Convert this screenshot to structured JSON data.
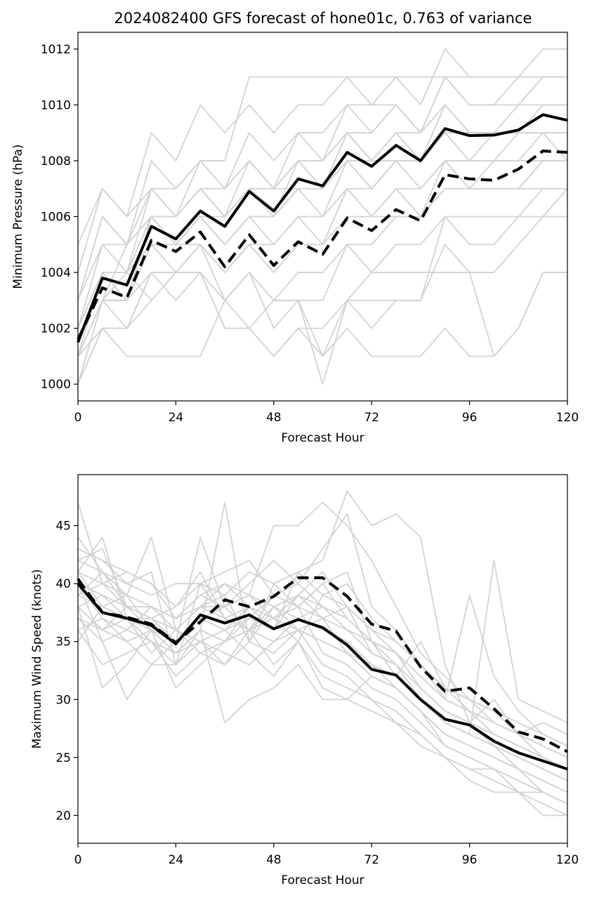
{
  "colors": {
    "ensemble": "#d3d3d3",
    "mean": "#000000",
    "deterministic": "#000000"
  },
  "chart_data": [
    {
      "type": "line",
      "title": "2024082400 GFS forecast of hone01c, 0.763 of variance",
      "xlabel": "Forecast Hour",
      "ylabel": "Minimum Pressure (hPa)",
      "xlim": [
        0,
        120
      ],
      "ylim": [
        999.4,
        1012.6
      ],
      "xticks": [
        0,
        24,
        48,
        72,
        96,
        120
      ],
      "yticks": [
        1000,
        1002,
        1004,
        1006,
        1008,
        1010,
        1012
      ],
      "x": [
        0,
        6,
        12,
        18,
        24,
        30,
        36,
        42,
        48,
        54,
        60,
        66,
        72,
        78,
        84,
        90,
        96,
        102,
        108,
        114,
        120
      ],
      "series": [
        {
          "style": "solid-thick",
          "values": [
            1001.5,
            1003.8,
            1003.55,
            1005.65,
            1005.2,
            1006.2,
            1005.65,
            1006.9,
            1006.2,
            1007.35,
            1007.1,
            1008.3,
            1007.8,
            1008.55,
            1008.0,
            1009.15,
            1008.9,
            1008.92,
            1009.1,
            1009.65,
            1009.45
          ]
        },
        {
          "style": "dashed-thick",
          "values": [
            1001.6,
            1003.45,
            1003.1,
            1005.15,
            1004.75,
            1005.45,
            1004.2,
            1005.35,
            1004.25,
            1005.1,
            1004.65,
            1005.95,
            1005.5,
            1006.25,
            1005.85,
            1007.5,
            1007.35,
            1007.3,
            1007.7,
            1008.35,
            1008.3
          ]
        }
      ],
      "ensemble_members": [
        [
          1000,
          1003,
          1005,
          1007,
          1006,
          1007,
          1006,
          1008,
          1007,
          1008,
          1008,
          1009,
          1009,
          1010,
          1009,
          1011,
          1010,
          1010,
          1010,
          1011,
          1011
        ],
        [
          1001,
          1004,
          1003,
          1006,
          1005,
          1006,
          1006,
          1007,
          1006,
          1008,
          1007,
          1009,
          1008,
          1009,
          1008,
          1010,
          1009,
          1009,
          1009,
          1010,
          1010
        ],
        [
          1002,
          1004,
          1004,
          1006,
          1006,
          1007,
          1006,
          1007,
          1007,
          1008,
          1007,
          1009,
          1008,
          1009,
          1009,
          1010,
          1009,
          1009,
          1010,
          1010,
          1010
        ],
        [
          1001,
          1003,
          1003,
          1005,
          1005,
          1006,
          1005,
          1006,
          1006,
          1007,
          1006,
          1008,
          1007,
          1008,
          1008,
          1009,
          1008,
          1009,
          1009,
          1009,
          1009
        ],
        [
          1002,
          1005,
          1004,
          1007,
          1006,
          1008,
          1007,
          1008,
          1007,
          1009,
          1008,
          1010,
          1009,
          1010,
          1009,
          1011,
          1010,
          1010,
          1010,
          1011,
          1011
        ],
        [
          1001,
          1003,
          1003,
          1006,
          1005,
          1006,
          1005,
          1006,
          1005,
          1006,
          1006,
          1007,
          1007,
          1008,
          1007,
          1008,
          1008,
          1008,
          1008,
          1009,
          1008
        ],
        [
          1000,
          1002,
          1002,
          1004,
          1004,
          1005,
          1004,
          1005,
          1004,
          1005,
          1005,
          1006,
          1006,
          1007,
          1006,
          1007,
          1007,
          1007,
          1007,
          1008,
          1008
        ],
        [
          1001,
          1003,
          1002,
          1004,
          1004,
          1004,
          1003,
          1004,
          1003,
          1004,
          1004,
          1005,
          1005,
          1006,
          1006,
          1007,
          1007,
          1007,
          1007,
          1008,
          1008
        ],
        [
          1001,
          1002,
          1002,
          1004,
          1003,
          1004,
          1002,
          1002,
          1001,
          1002,
          1002,
          1003,
          1002,
          1003,
          1003,
          1005,
          1004,
          1004,
          1005,
          1006,
          1006
        ],
        [
          1001,
          1002,
          1001,
          1001,
          1001,
          1001,
          1003,
          1002,
          1001,
          1002,
          1001,
          1002,
          1001,
          1001,
          1001,
          1002,
          1001,
          1001,
          1002,
          1004,
          1004
        ],
        [
          1000,
          1002,
          1002,
          1003,
          1004,
          1004,
          1003,
          1004,
          1003,
          1003,
          1000,
          1003,
          1004,
          1004,
          1004,
          1004,
          1004,
          1001,
          1002,
          1004,
          1004
        ],
        [
          1003,
          1005,
          1005,
          1006,
          1006,
          1007,
          1007,
          1008,
          1007,
          1008,
          1008,
          1009,
          1008,
          1009,
          1008,
          1010,
          1009,
          1009,
          1009,
          1010,
          1010
        ],
        [
          1004,
          1007,
          1006,
          1009,
          1008,
          1010,
          1009,
          1010,
          1009,
          1010,
          1010,
          1011,
          1010,
          1011,
          1010,
          1012,
          1011,
          1011,
          1011,
          1012,
          1012
        ],
        [
          1003,
          1006,
          1005,
          1008,
          1007,
          1008,
          1008,
          1011,
          1011,
          1011,
          1011,
          1011,
          1011,
          1011,
          1011,
          1011,
          1011,
          1011,
          1011,
          1011,
          1011
        ],
        [
          1005,
          1007,
          1006,
          1007,
          1007,
          1008,
          1007,
          1009,
          1008,
          1009,
          1009,
          1010,
          1010,
          1010,
          1009,
          1011,
          1010,
          1010,
          1011,
          1011,
          1011
        ],
        [
          1002,
          1004,
          1004,
          1005,
          1005,
          1005,
          1004,
          1005,
          1005,
          1006,
          1005,
          1007,
          1006,
          1007,
          1007,
          1008,
          1007,
          1008,
          1008,
          1008,
          1008
        ],
        [
          1001,
          1003,
          1004,
          1003,
          1004,
          1005,
          1003,
          1004,
          1002,
          1003,
          1001,
          1003,
          1003,
          1003,
          1003,
          1006,
          1005,
          1005,
          1006,
          1006,
          1007
        ],
        [
          1002,
          1004,
          1003,
          1004,
          1004,
          1004,
          1002,
          1002,
          1003,
          1003,
          1003,
          1005,
          1004,
          1005,
          1005,
          1006,
          1006,
          1006,
          1006,
          1007,
          1007
        ],
        [
          1001,
          1003,
          1003,
          1005,
          1004,
          1005,
          1004,
          1005,
          1004,
          1005,
          1005,
          1007,
          1006,
          1006,
          1006,
          1008,
          1007,
          1007,
          1007,
          1007,
          1007
        ],
        [
          1002,
          1004,
          1004,
          1006,
          1005,
          1006,
          1005,
          1006,
          1006,
          1007,
          1007,
          1008,
          1007,
          1008,
          1008,
          1009,
          1009,
          1009,
          1009,
          1010,
          1010
        ],
        [
          1003,
          1006,
          1005,
          1006,
          1006,
          1007,
          1006,
          1007,
          1007,
          1007,
          1007,
          1008,
          1008,
          1008,
          1008,
          1009,
          1008,
          1008,
          1009,
          1009,
          1009
        ]
      ]
    },
    {
      "type": "line",
      "title": "",
      "xlabel": "Forecast Hour",
      "ylabel": "Maximum Wind Speed (knots)",
      "xlim": [
        0,
        120
      ],
      "ylim": [
        17.6,
        49.4
      ],
      "xticks": [
        0,
        24,
        48,
        72,
        96,
        120
      ],
      "yticks": [
        20,
        25,
        30,
        35,
        40,
        45
      ],
      "x": [
        0,
        6,
        12,
        18,
        24,
        30,
        36,
        42,
        48,
        54,
        60,
        66,
        72,
        78,
        84,
        90,
        96,
        102,
        108,
        114,
        120
      ],
      "series": [
        {
          "style": "solid-thick",
          "values": [
            40.0,
            37.5,
            37.0,
            36.4,
            34.8,
            37.3,
            36.6,
            37.3,
            36.1,
            36.9,
            36.2,
            34.7,
            32.6,
            32.1,
            30.0,
            28.3,
            27.8,
            26.4,
            25.4,
            24.7,
            24.0
          ]
        },
        {
          "style": "dashed-thick",
          "values": [
            40.4,
            37.5,
            37.1,
            36.5,
            34.9,
            36.7,
            38.6,
            38.0,
            38.9,
            40.5,
            40.5,
            38.9,
            36.5,
            35.9,
            32.8,
            30.7,
            31.0,
            29.2,
            27.2,
            26.6,
            25.5
          ]
        }
      ],
      "ensemble_members": [
        [
          47,
          40,
          38,
          36,
          34,
          36,
          47,
          35,
          40,
          38,
          40,
          41,
          35,
          33,
          30,
          28,
          27,
          26,
          24,
          23,
          22
        ],
        [
          44,
          41,
          38,
          38,
          36,
          38,
          40,
          39,
          45,
          45,
          47,
          45,
          42,
          38,
          34,
          32,
          30,
          29,
          27,
          26,
          25
        ],
        [
          41,
          38,
          37,
          35,
          33,
          36,
          35,
          38,
          36,
          41,
          42,
          48,
          45,
          46,
          44,
          33,
          28,
          26,
          25,
          24,
          23
        ],
        [
          43,
          42,
          40,
          39,
          40,
          40,
          41,
          42,
          39,
          40,
          43,
          46,
          38,
          36,
          33,
          31,
          30,
          28,
          27,
          25,
          24
        ],
        [
          38,
          36,
          35,
          36,
          35,
          37,
          38,
          36,
          37,
          35,
          39,
          40,
          37,
          35,
          33,
          30,
          39,
          32,
          29,
          27,
          26
        ],
        [
          37,
          36,
          37,
          34,
          36,
          38,
          39,
          35,
          38,
          36,
          37,
          38,
          34,
          33,
          31,
          29,
          28,
          30,
          27,
          28,
          27
        ],
        [
          35,
          38,
          39,
          36,
          34,
          35,
          33,
          36,
          35,
          37,
          38,
          36,
          35,
          32,
          30,
          28,
          27,
          42,
          30,
          29,
          28
        ],
        [
          39,
          41,
          40,
          41,
          33,
          40,
          37,
          36,
          38,
          37,
          36,
          35,
          33,
          31,
          29,
          27,
          26,
          25,
          24,
          23,
          22
        ],
        [
          42,
          43,
          38,
          37,
          36,
          34,
          35,
          37,
          39,
          38,
          34,
          33,
          31,
          30,
          28,
          26,
          25,
          24,
          23,
          22,
          21
        ],
        [
          40,
          37,
          35,
          33,
          35,
          37,
          36,
          38,
          37,
          39,
          37,
          34,
          32,
          31,
          29,
          27,
          26,
          25,
          24,
          22,
          21
        ],
        [
          36,
          33,
          34,
          35,
          32,
          34,
          33,
          35,
          34,
          36,
          33,
          32,
          30,
          29,
          27,
          25,
          24,
          24,
          22,
          21,
          20
        ],
        [
          38,
          31,
          33,
          36,
          31,
          33,
          35,
          36,
          33,
          35,
          32,
          31,
          30,
          28,
          26,
          25,
          23,
          22,
          22,
          20,
          20
        ],
        [
          41,
          44,
          37,
          37,
          38,
          41,
          37,
          36,
          39,
          38,
          40,
          37,
          35,
          34,
          32,
          30,
          29,
          27,
          26,
          25,
          24
        ],
        [
          39,
          40,
          41,
          40,
          37,
          39,
          40,
          38,
          36,
          39,
          41,
          38,
          36,
          35,
          33,
          31,
          29,
          28,
          27,
          26,
          25
        ],
        [
          40,
          35,
          36,
          38,
          37,
          39,
          38,
          40,
          42,
          40,
          38,
          37,
          35,
          34,
          31,
          29,
          28,
          27,
          26,
          25,
          24
        ],
        [
          37,
          35,
          30,
          33,
          33,
          35,
          36,
          34,
          32,
          35,
          31,
          30,
          29,
          28,
          27,
          25,
          24,
          23,
          22,
          22,
          21
        ],
        [
          38,
          39,
          37,
          35,
          34,
          36,
          28,
          30,
          31,
          33,
          30,
          30,
          32,
          31,
          29,
          26,
          25,
          24,
          23,
          22,
          21
        ],
        [
          42,
          41,
          39,
          44,
          36,
          35,
          34,
          33,
          35,
          37,
          36,
          35,
          33,
          32,
          30,
          28,
          27,
          26,
          25,
          24,
          23
        ],
        [
          40,
          39,
          38,
          37,
          35,
          44,
          38,
          39,
          37,
          36,
          35,
          34,
          33,
          32,
          35,
          31,
          30,
          29,
          28,
          27,
          26
        ],
        [
          39,
          38,
          37,
          36,
          35,
          37,
          36,
          37,
          36,
          37,
          36,
          35,
          33,
          32,
          30,
          28,
          27,
          26,
          25,
          24,
          23
        ],
        [
          43,
          42,
          41,
          40,
          38,
          40,
          39,
          41,
          40,
          41,
          39,
          38,
          36,
          34,
          31,
          29,
          28,
          27,
          26,
          25,
          24
        ],
        [
          36,
          37,
          36,
          35,
          34,
          36,
          35,
          36,
          35,
          36,
          35,
          34,
          32,
          31,
          29,
          27,
          26,
          25,
          24,
          23,
          22
        ],
        [
          38,
          36,
          38,
          37,
          36,
          38,
          37,
          38,
          37,
          38,
          37,
          36,
          34,
          33,
          31,
          29,
          28,
          27,
          26,
          25,
          24
        ],
        [
          41,
          40,
          39,
          38,
          37,
          38,
          38,
          39,
          38,
          39,
          38,
          37,
          35,
          34,
          32,
          30,
          29,
          28,
          27,
          26,
          25
        ]
      ]
    }
  ]
}
